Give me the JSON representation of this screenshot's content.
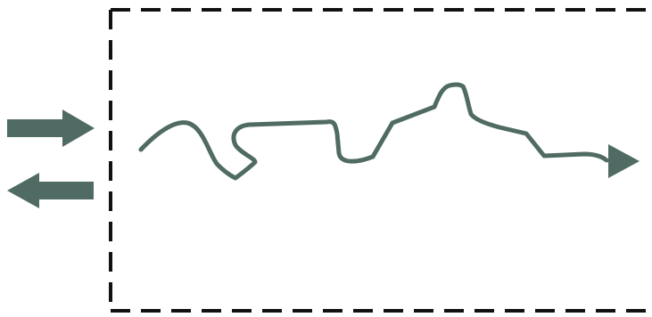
{
  "colors": {
    "accent": "#4f6b63",
    "border": "#111111",
    "background": "#ffffff"
  },
  "diagram": {
    "boundary": {
      "style": "dashed",
      "open_side": "right"
    },
    "arrows": [
      {
        "name": "inward-arrow",
        "direction": "right",
        "icon": "arrow-right-icon"
      },
      {
        "name": "outward-arrow",
        "direction": "left",
        "icon": "arrow-left-icon"
      }
    ],
    "path": {
      "style": "wavy-line",
      "end": "arrowhead-right"
    }
  }
}
